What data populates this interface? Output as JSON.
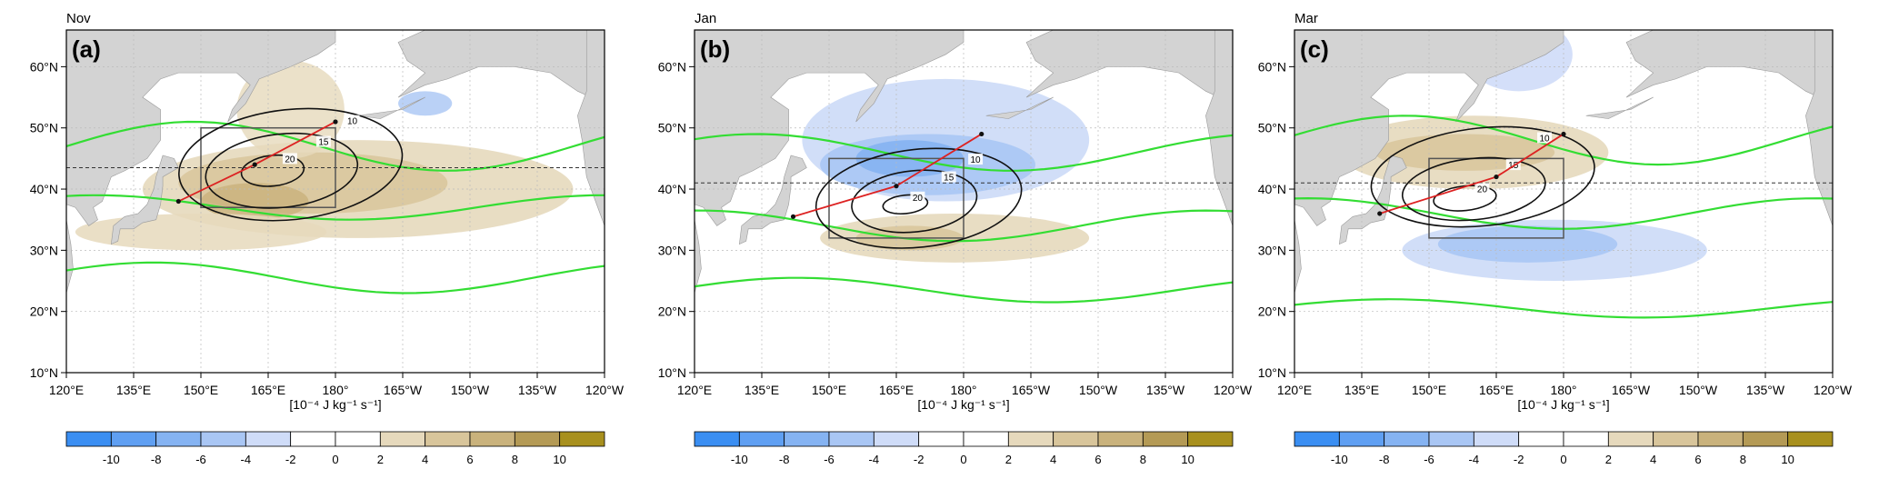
{
  "chart_data": [
    {
      "type": "map-contour",
      "panel_label": "(a)",
      "month": "Nov",
      "units_label": "[10⁻⁴ J kg⁻¹ s⁻¹]",
      "lon_range": [
        120,
        240
      ],
      "lat_range": [
        10,
        66
      ],
      "x_ticks": [
        "120°E",
        "135°E",
        "150°E",
        "165°E",
        "180°",
        "165°W",
        "150°W",
        "135°W",
        "120°W"
      ],
      "y_ticks": [
        "10°N",
        "20°N",
        "30°N",
        "40°N",
        "50°N",
        "60°N"
      ],
      "colorbar_ticks": [
        "-10",
        "-8",
        "-6",
        "-4",
        "-2",
        "0",
        "2",
        "4",
        "6",
        "8",
        "10"
      ],
      "dashed_lat": 43.5,
      "box": {
        "lon": [
          150,
          180
        ],
        "lat": [
          37,
          50
        ]
      },
      "red_track": [
        [
          145,
          38
        ],
        [
          162,
          44
        ],
        [
          180,
          51
        ]
      ],
      "contours": [
        {
          "label": "10",
          "center": [
            170,
            44
          ],
          "rx": 25,
          "ry": 9
        },
        {
          "label": "15",
          "center": [
            168,
            43
          ],
          "rx": 17,
          "ry": 6
        },
        {
          "label": "20",
          "center": [
            166,
            43
          ],
          "rx": 7,
          "ry": 2.5
        }
      ]
    },
    {
      "type": "map-contour",
      "panel_label": "(b)",
      "month": "Jan",
      "units_label": "[10⁻⁴ J kg⁻¹ s⁻¹]",
      "lon_range": [
        120,
        240
      ],
      "lat_range": [
        10,
        66
      ],
      "x_ticks": [
        "120°E",
        "135°E",
        "150°E",
        "165°E",
        "180°",
        "165°W",
        "150°W",
        "135°W",
        "120°W"
      ],
      "y_ticks": [
        "10°N",
        "20°N",
        "30°N",
        "40°N",
        "50°N",
        "60°N"
      ],
      "colorbar_ticks": [
        "-10",
        "-8",
        "-6",
        "-4",
        "-2",
        "0",
        "2",
        "4",
        "6",
        "8",
        "10"
      ],
      "dashed_lat": 41,
      "box": {
        "lon": [
          150,
          180
        ],
        "lat": [
          32,
          45
        ]
      },
      "red_track": [
        [
          142,
          35.5
        ],
        [
          165,
          40.5
        ],
        [
          184,
          49
        ]
      ],
      "contours": [
        {
          "label": "10",
          "center": [
            170,
            38.5
          ],
          "rx": 23,
          "ry": 8
        },
        {
          "label": "15",
          "center": [
            169,
            38
          ],
          "rx": 14,
          "ry": 5
        },
        {
          "label": "20",
          "center": [
            167,
            37.5
          ],
          "rx": 5,
          "ry": 1.5
        }
      ]
    },
    {
      "type": "map-contour",
      "panel_label": "(c)",
      "month": "Mar",
      "units_label": "[10⁻⁴ J kg⁻¹ s⁻¹]",
      "lon_range": [
        120,
        240
      ],
      "lat_range": [
        10,
        66
      ],
      "x_ticks": [
        "120°E",
        "135°E",
        "150°E",
        "165°E",
        "180°",
        "165°W",
        "150°W",
        "135°W",
        "120°W"
      ],
      "y_ticks": [
        "10°N",
        "20°N",
        "30°N",
        "40°N",
        "50°N",
        "60°N"
      ],
      "colorbar_ticks": [
        "-10",
        "-8",
        "-6",
        "-4",
        "-2",
        "0",
        "2",
        "4",
        "6",
        "8",
        "10"
      ],
      "dashed_lat": 41,
      "box": {
        "lon": [
          150,
          180
        ],
        "lat": [
          32,
          45
        ]
      },
      "red_track": [
        [
          139,
          36
        ],
        [
          165,
          42
        ],
        [
          180,
          49
        ]
      ],
      "contours": [
        {
          "label": "10",
          "center": [
            162,
            42
          ],
          "rx": 25,
          "ry": 8
        },
        {
          "label": "15",
          "center": [
            160,
            40
          ],
          "rx": 16,
          "ry": 5
        },
        {
          "label": "20",
          "center": [
            158,
            38.5
          ],
          "rx": 7,
          "ry": 2
        }
      ]
    }
  ],
  "style": {
    "land": "#d3d3d3",
    "jet_contour": "#33dd33",
    "track": "#dd2222",
    "colorbar": [
      "#3a8ef2",
      "#5f9ff2",
      "#85b3f2",
      "#a9c6f4",
      "#cfdcf8",
      "#ffffff",
      "#ffffff",
      "#e6d9bc",
      "#d8c59b",
      "#c9b27c",
      "#b49a55",
      "#a8901e"
    ]
  }
}
